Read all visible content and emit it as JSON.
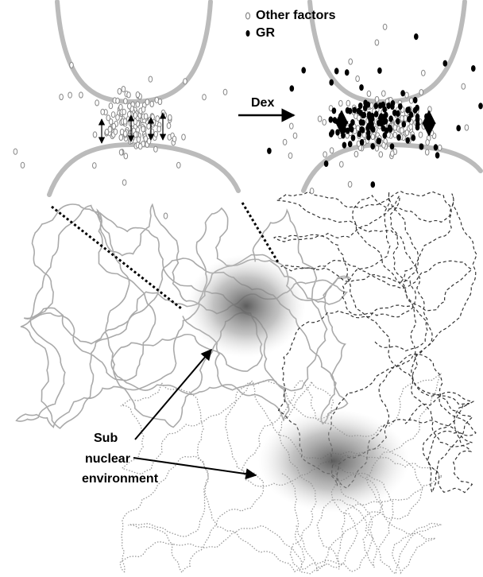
{
  "legend": {
    "items": [
      {
        "label": "Other factors"
      },
      {
        "label": "GR"
      }
    ]
  },
  "treatment": {
    "label": "Dex"
  },
  "annotation": {
    "lines": [
      "Sub",
      "nuclear",
      "environment"
    ]
  }
}
